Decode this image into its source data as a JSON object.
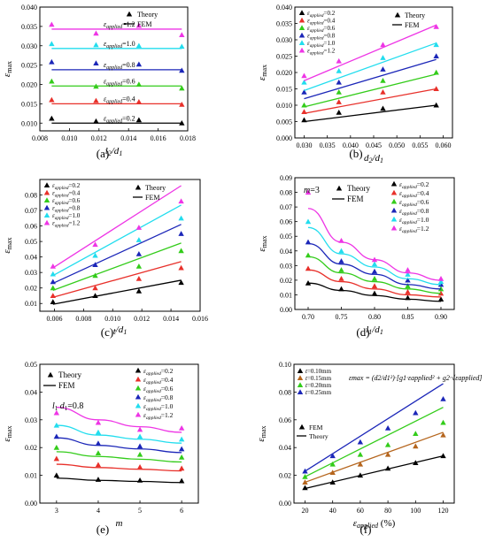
{
  "panel_labels": [
    "(a)",
    "(b)",
    "(c)",
    "(d)",
    "(e)",
    "(f)"
  ],
  "eps_letter": "ε",
  "eps_sub": "applied",
  "colors": {
    "black": "#000000",
    "red": "#e8302a",
    "green": "#33cc1a",
    "blue": "#1b26b8",
    "cyan": "#22ddee",
    "magenta": "#ee35e5",
    "orange": "#b5651d"
  },
  "chart_data": [
    {
      "id": "a",
      "type": "scatter",
      "xlabel": "l2/d1",
      "ylabel": "εmax",
      "xlim": [
        0.008,
        0.018
      ],
      "ylim": [
        0.008,
        0.04
      ],
      "xticks": [
        "0.008",
        "0.010",
        "0.012",
        "0.014",
        "0.016",
        "0.018"
      ],
      "xtick_vals": [
        0.008,
        0.01,
        0.012,
        0.014,
        0.016,
        0.018
      ],
      "yticks": [
        "0.010",
        "0.015",
        "0.020",
        "0.025",
        "0.030",
        "0.035",
        "0.040"
      ],
      "ytick_vals": [
        0.01,
        0.015,
        0.02,
        0.025,
        0.03,
        0.035,
        0.04
      ],
      "legend": {
        "placement": "top-right",
        "entries": [
          "Theory",
          "FEM"
        ]
      },
      "x": [
        0.0088,
        0.0118,
        0.0147,
        0.0176
      ],
      "series": [
        {
          "name": "=1.2",
          "color": "magenta",
          "theory": [
            0.0355,
            0.0332,
            0.0352,
            0.0328
          ],
          "fem": [
            0.0343,
            0.0343,
            0.0343,
            0.0343
          ]
        },
        {
          "name": "=1.0",
          "color": "cyan",
          "theory": [
            0.0305,
            0.0302,
            0.03,
            0.0298
          ],
          "fem": [
            0.0293,
            0.0293,
            0.0293,
            0.0293
          ]
        },
        {
          "name": "=0.8",
          "color": "blue",
          "theory": [
            0.0258,
            0.0255,
            0.0252,
            0.0236
          ],
          "fem": [
            0.0238,
            0.0238,
            0.0238,
            0.0238
          ]
        },
        {
          "name": "=0.6",
          "color": "green",
          "theory": [
            0.0208,
            0.0195,
            0.02,
            0.019
          ],
          "fem": [
            0.0196,
            0.0196,
            0.0196,
            0.0196
          ]
        },
        {
          "name": "=0.4",
          "color": "red",
          "theory": [
            0.016,
            0.0158,
            0.0155,
            0.0148
          ],
          "fem": [
            0.015,
            0.015,
            0.015,
            0.015
          ]
        },
        {
          "name": "=0.2",
          "color": "black",
          "theory": [
            0.0112,
            0.0105,
            0.0108,
            0.01
          ],
          "fem": [
            0.01,
            0.01,
            0.01,
            0.01
          ]
        }
      ]
    },
    {
      "id": "b",
      "type": "scatter",
      "xlabel": "d2/d1",
      "ylabel": "εmax",
      "xlim": [
        0.028,
        0.062
      ],
      "ylim": [
        0.0,
        0.04
      ],
      "xticks": [
        "0.030",
        "0.035",
        "0.040",
        "0.045",
        "0.050",
        "0.055",
        "0.060"
      ],
      "xtick_vals": [
        0.03,
        0.035,
        0.04,
        0.045,
        0.05,
        0.055,
        0.06
      ],
      "yticks": [
        "0.000",
        "0.005",
        "0.010",
        "0.015",
        "0.020",
        "0.025",
        "0.030",
        "0.035",
        "0.040"
      ],
      "ytick_vals": [
        0.0,
        0.005,
        0.01,
        0.015,
        0.02,
        0.025,
        0.03,
        0.035,
        0.04
      ],
      "legend": {
        "placement": "top-left",
        "entries": [
          "=0.2",
          "=0.4",
          "=0.6",
          "=0.8",
          "=1.0",
          "=1.2",
          "Theory",
          "FEM"
        ]
      },
      "x": [
        0.03,
        0.0375,
        0.047,
        0.0585
      ],
      "fem_x": [
        0.03,
        0.0585
      ],
      "series": [
        {
          "name": "=0.2",
          "color": "black",
          "theory": [
            0.0055,
            0.0078,
            0.009,
            0.01
          ],
          "fem": [
            0.005,
            0.01
          ]
        },
        {
          "name": "=0.4",
          "color": "red",
          "theory": [
            0.008,
            0.011,
            0.014,
            0.015
          ],
          "fem": [
            0.0075,
            0.015
          ]
        },
        {
          "name": "=0.6",
          "color": "green",
          "theory": [
            0.01,
            0.014,
            0.0175,
            0.02
          ],
          "fem": [
            0.0095,
            0.0195
          ]
        },
        {
          "name": "=0.8",
          "color": "blue",
          "theory": [
            0.014,
            0.017,
            0.021,
            0.025
          ],
          "fem": [
            0.012,
            0.024
          ]
        },
        {
          "name": "=1.0",
          "color": "cyan",
          "theory": [
            0.017,
            0.0205,
            0.0245,
            0.0285
          ],
          "fem": [
            0.0145,
            0.029
          ]
        },
        {
          "name": "=1.2",
          "color": "magenta",
          "theory": [
            0.019,
            0.0235,
            0.0285,
            0.034
          ],
          "fem": [
            0.0175,
            0.0345
          ]
        }
      ]
    },
    {
      "id": "c",
      "type": "scatter",
      "xlabel": "t/d1",
      "ylabel": "εmax",
      "xlim": [
        0.005,
        0.016
      ],
      "ylim": [
        0.005,
        0.09
      ],
      "xticks": [
        "0.006",
        "0.008",
        "0.010",
        "0.012",
        "0.014",
        "0.016"
      ],
      "xtick_vals": [
        0.006,
        0.008,
        0.01,
        0.012,
        0.014,
        0.016
      ],
      "yticks": [
        "0.01",
        "0.02",
        "0.03",
        "0.04",
        "0.05",
        "0.06",
        "0.07",
        "0.08"
      ],
      "ytick_vals": [
        0.01,
        0.02,
        0.03,
        0.04,
        0.05,
        0.06,
        0.07,
        0.08
      ],
      "legend": {
        "placement": "top-left",
        "entries": [
          "=0.2",
          "=0.4",
          "=0.6",
          "=0.8",
          "=1.0",
          "=1.2",
          "Theory",
          "FEM"
        ]
      },
      "x": [
        0.0059,
        0.0088,
        0.0118,
        0.0147
      ],
      "fem_x": [
        0.0059,
        0.0147
      ],
      "series": [
        {
          "name": "=0.2",
          "color": "black",
          "theory": [
            0.011,
            0.015,
            0.018,
            0.0235
          ],
          "fem": [
            0.0095,
            0.025
          ]
        },
        {
          "name": "=0.4",
          "color": "red",
          "theory": [
            0.015,
            0.02,
            0.026,
            0.033
          ],
          "fem": [
            0.014,
            0.037
          ]
        },
        {
          "name": "=0.6",
          "color": "green",
          "theory": [
            0.02,
            0.028,
            0.034,
            0.044
          ],
          "fem": [
            0.0185,
            0.049
          ]
        },
        {
          "name": "=0.8",
          "color": "blue",
          "theory": [
            0.024,
            0.035,
            0.042,
            0.055
          ],
          "fem": [
            0.023,
            0.061
          ]
        },
        {
          "name": "=1.0",
          "color": "cyan",
          "theory": [
            0.029,
            0.041,
            0.051,
            0.065
          ],
          "fem": [
            0.028,
            0.0735
          ]
        },
        {
          "name": "=1.2",
          "color": "magenta",
          "theory": [
            0.034,
            0.048,
            0.059,
            0.076
          ],
          "fem": [
            0.033,
            0.086
          ]
        }
      ]
    },
    {
      "id": "d",
      "type": "scatter",
      "xlabel": "l1/d1",
      "ylabel": "εmax",
      "annotation": "m=3",
      "xlim": [
        0.68,
        0.92
      ],
      "ylim": [
        0.0,
        0.09
      ],
      "xticks": [
        "0.70",
        "0.75",
        "0.80",
        "0.85",
        "0.90"
      ],
      "xtick_vals": [
        0.7,
        0.75,
        0.8,
        0.85,
        0.9
      ],
      "yticks": [
        "0.00",
        "0.01",
        "0.02",
        "0.03",
        "0.04",
        "0.05",
        "0.06",
        "0.07",
        "0.08",
        "0.09"
      ],
      "ytick_vals": [
        0.0,
        0.01,
        0.02,
        0.03,
        0.04,
        0.05,
        0.06,
        0.07,
        0.08,
        0.09
      ],
      "legend": {
        "placement": "top-right",
        "entries": [
          "Theory",
          "FEM",
          "=0.2",
          "=0.4",
          "=0.6",
          "=0.8",
          "=1.0",
          "=1.2"
        ]
      },
      "x": [
        0.7,
        0.75,
        0.8,
        0.85,
        0.9
      ],
      "series": [
        {
          "name": "=0.2",
          "color": "black",
          "theory": [
            0.018,
            0.014,
            0.011,
            0.008,
            0.007
          ],
          "fem": [
            0.018,
            0.013,
            0.0095,
            0.007,
            0.0055
          ]
        },
        {
          "name": "=0.4",
          "color": "red",
          "theory": [
            0.028,
            0.021,
            0.016,
            0.012,
            0.011
          ],
          "fem": [
            0.027,
            0.019,
            0.014,
            0.01,
            0.0085
          ]
        },
        {
          "name": "=0.6",
          "color": "green",
          "theory": [
            0.037,
            0.027,
            0.021,
            0.016,
            0.014
          ],
          "fem": [
            0.036,
            0.025,
            0.019,
            0.014,
            0.011
          ]
        },
        {
          "name": "=0.8",
          "color": "blue",
          "theory": [
            0.046,
            0.033,
            0.026,
            0.02,
            0.017
          ],
          "fem": [
            0.045,
            0.031,
            0.024,
            0.017,
            0.014
          ]
        },
        {
          "name": "=1.0",
          "color": "cyan",
          "theory": [
            0.06,
            0.04,
            0.031,
            0.024,
            0.019
          ],
          "fem": [
            0.056,
            0.038,
            0.029,
            0.021,
            0.017
          ]
        },
        {
          "name": "=1.2",
          "color": "magenta",
          "theory": [
            0.08,
            0.047,
            0.034,
            0.027,
            0.021
          ],
          "fem": [
            0.069,
            0.046,
            0.034,
            0.025,
            0.02
          ]
        }
      ]
    },
    {
      "id": "e",
      "type": "scatter",
      "xlabel": "m",
      "ylabel": "εmax",
      "annotation": "l1/d1=0.8",
      "xlim": [
        2.6,
        6.4
      ],
      "ylim": [
        0.0,
        0.05
      ],
      "xticks": [
        "3",
        "4",
        "5",
        "6"
      ],
      "xtick_vals": [
        3,
        4,
        5,
        6
      ],
      "yticks": [
        "0.00",
        "0.01",
        "0.02",
        "0.03",
        "0.04",
        "0.05"
      ],
      "ytick_vals": [
        0.0,
        0.01,
        0.02,
        0.03,
        0.04,
        0.05
      ],
      "legend": {
        "placement": "top-right",
        "entries": [
          "Theory",
          "FEM",
          "=0.2",
          "=0.4",
          "=0.6",
          "=0.8",
          "=1.0",
          "=1.2"
        ]
      },
      "x": [
        3,
        4,
        5,
        6
      ],
      "series": [
        {
          "name": "=0.2",
          "color": "black",
          "theory": [
            0.01,
            0.0085,
            0.0082,
            0.008
          ],
          "fem": [
            0.009,
            0.0082,
            0.0078,
            0.0074
          ]
        },
        {
          "name": "=0.4",
          "color": "red",
          "theory": [
            0.016,
            0.0138,
            0.013,
            0.0125
          ],
          "fem": [
            0.014,
            0.0128,
            0.0122,
            0.0116
          ]
        },
        {
          "name": "=0.6",
          "color": "green",
          "theory": [
            0.02,
            0.018,
            0.0175,
            0.0165
          ],
          "fem": [
            0.0185,
            0.0168,
            0.0158,
            0.0148
          ]
        },
        {
          "name": "=0.8",
          "color": "blue",
          "theory": [
            0.024,
            0.0215,
            0.0205,
            0.0195
          ],
          "fem": [
            0.0235,
            0.0208,
            0.0195,
            0.0182
          ]
        },
        {
          "name": "=1.0",
          "color": "cyan",
          "theory": [
            0.028,
            0.0255,
            0.024,
            0.023
          ],
          "fem": [
            0.028,
            0.0245,
            0.023,
            0.0216
          ]
        },
        {
          "name": "=1.2",
          "color": "magenta",
          "theory": [
            0.0325,
            0.029,
            0.0265,
            0.027
          ],
          "fem": [
            0.0345,
            0.03,
            0.0275,
            0.0255
          ]
        }
      ]
    },
    {
      "id": "f",
      "type": "scatter",
      "xlabel": "εapplied (%)",
      "ylabel": "εmax",
      "formula": "εmax = (d2/d1²)·[g1·εapplied² + g2·√εapplied]",
      "xlim": [
        12,
        128
      ],
      "ylim": [
        0.0,
        0.1
      ],
      "xticks": [
        "20",
        "40",
        "60",
        "80",
        "100",
        "120"
      ],
      "xtick_vals": [
        20,
        40,
        60,
        80,
        100,
        120
      ],
      "yticks": [
        "0.00",
        "0.02",
        "0.04",
        "0.06",
        "0.08",
        "0.10"
      ],
      "ytick_vals": [
        0.0,
        0.02,
        0.04,
        0.06,
        0.08,
        0.1
      ],
      "legend": {
        "placement": "top-left",
        "entries": [
          "t=0.10mm",
          "t=0.15mm",
          "t=0.20mm",
          "t=0.25mm",
          "FEM",
          "Theory"
        ]
      },
      "x": [
        20,
        40,
        60,
        80,
        100,
        120
      ],
      "fem_x": [
        20,
        120
      ],
      "series": [
        {
          "name": "t=0.10mm",
          "color": "black",
          "theory": [
            0.011,
            0.015,
            0.02,
            0.025,
            0.029,
            0.034
          ],
          "fem": [
            0.0105,
            0.034
          ]
        },
        {
          "name": "t=0.15mm",
          "color": "orange",
          "theory": [
            0.015,
            0.022,
            0.028,
            0.035,
            0.041,
            0.049
          ],
          "fem": [
            0.015,
            0.051
          ]
        },
        {
          "name": "t=0.20mm",
          "color": "green",
          "theory": [
            0.019,
            0.028,
            0.035,
            0.042,
            0.05,
            0.058
          ],
          "fem": [
            0.019,
            0.069
          ]
        },
        {
          "name": "t=0.25mm",
          "color": "blue",
          "theory": [
            0.023,
            0.034,
            0.044,
            0.054,
            0.065,
            0.075
          ],
          "fem": [
            0.023,
            0.086
          ]
        }
      ]
    }
  ]
}
